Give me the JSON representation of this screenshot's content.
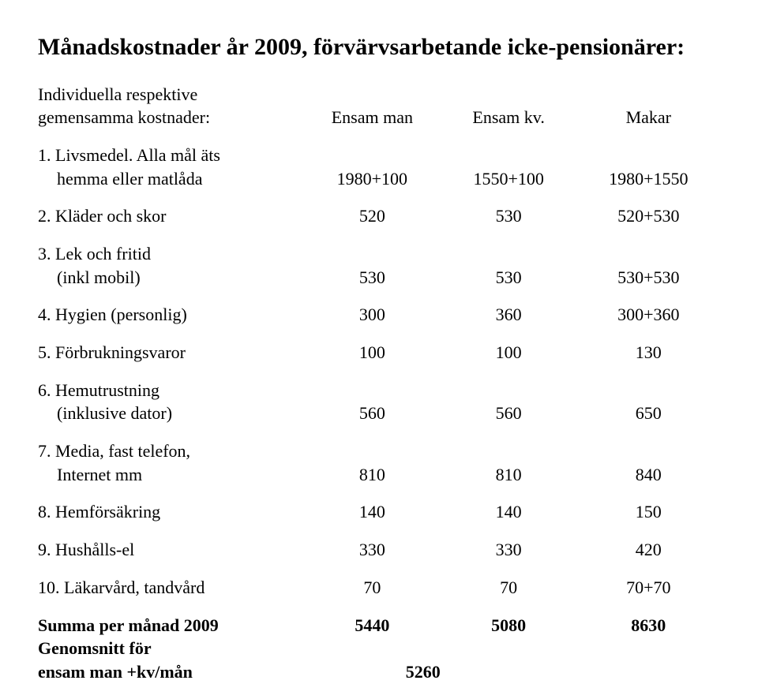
{
  "title": "Månadskostnader år 2009, förvärvsarbetande icke-pensionärer:",
  "intro": {
    "line1": "Individuella respektive",
    "line2_label": "gemensamma kostnader:",
    "col1": "Ensam man",
    "col2": "Ensam kv.",
    "col3": "Makar"
  },
  "rows": {
    "r1": {
      "label_a": "1. Livsmedel. Alla mål äts",
      "label_b": "hemma eller matlåda",
      "c1": "1980+100",
      "c2": "1550+100",
      "c3": "1980+1550"
    },
    "r2": {
      "label": "2. Kläder och skor",
      "c1": "520",
      "c2": "530",
      "c3": "520+530"
    },
    "r3": {
      "label_a": "3. Lek och fritid",
      "label_b": "(inkl mobil)",
      "c1": "530",
      "c2": "530",
      "c3": "530+530"
    },
    "r4": {
      "label": "4. Hygien (personlig)",
      "c1": "300",
      "c2": "360",
      "c3": "300+360"
    },
    "r5": {
      "label": "5. Förbrukningsvaror",
      "c1": "100",
      "c2": "100",
      "c3": "130"
    },
    "r6": {
      "label_a": "6. Hemutrustning",
      "label_b": "(inklusive dator)",
      "c1": "560",
      "c2": "560",
      "c3": "650"
    },
    "r7": {
      "label_a": "7. Media, fast telefon,",
      "label_b": "Internet mm",
      "c1": "810",
      "c2": "810",
      "c3": "840"
    },
    "r8": {
      "label": "8. Hemförsäkring",
      "c1": "140",
      "c2": "140",
      "c3": "150"
    },
    "r9": {
      "label": "9. Hushålls-el",
      "c1": "330",
      "c2": "330",
      "c3": "420"
    },
    "r10": {
      "label": "10. Läkarvård, tandvård",
      "c1": "70",
      "c2": "70",
      "c3": "70+70"
    }
  },
  "summary": {
    "sum_label": "Summa per månad 2009",
    "sum_c1": "5440",
    "sum_c2": "5080",
    "sum_c3": "8630",
    "avg_label_a": "Genomsnitt för",
    "avg_label_b": "ensam man +kv/mån",
    "avg_value": "5260"
  },
  "style": {
    "font_family": "Times New Roman",
    "title_fontsize_pt": 22,
    "body_fontsize_pt": 16,
    "text_color": "#000000",
    "background_color": "#ffffff"
  }
}
